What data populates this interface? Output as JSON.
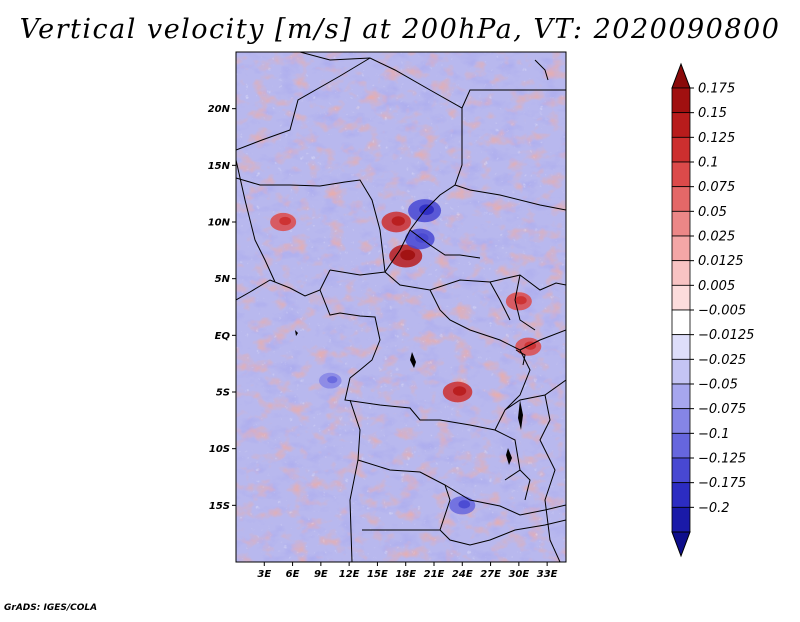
{
  "title": "Vertical velocity [m/s] at 200hPa, VT: 2020090800",
  "footer": "GrADS: IGES/COLA",
  "map": {
    "region": "Central Africa",
    "lon_range_deg": [
      0,
      35
    ],
    "lat_range_deg": [
      -20,
      25
    ],
    "lat_ticks": [
      {
        "value": 20,
        "label": "20N"
      },
      {
        "value": 15,
        "label": "15N"
      },
      {
        "value": 10,
        "label": "10N"
      },
      {
        "value": 5,
        "label": "5N"
      },
      {
        "value": 0,
        "label": "EQ"
      },
      {
        "value": -5,
        "label": "5S"
      },
      {
        "value": -10,
        "label": "10S"
      },
      {
        "value": -15,
        "label": "15S"
      }
    ],
    "lon_ticks": [
      {
        "value": 3,
        "label": "3E"
      },
      {
        "value": 6,
        "label": "6E"
      },
      {
        "value": 9,
        "label": "9E"
      },
      {
        "value": 12,
        "label": "12E"
      },
      {
        "value": 15,
        "label": "15E"
      },
      {
        "value": 18,
        "label": "18E"
      },
      {
        "value": 21,
        "label": "21E"
      },
      {
        "value": 24,
        "label": "24E"
      },
      {
        "value": 27,
        "label": "27E"
      },
      {
        "value": 30,
        "label": "30E"
      },
      {
        "value": 33,
        "label": "33E"
      }
    ],
    "hotspots": [
      {
        "lon": 18,
        "lat": 7,
        "value": 0.15
      },
      {
        "lon": 17,
        "lat": 10,
        "value": 0.125
      },
      {
        "lon": 5,
        "lat": 10,
        "value": 0.1
      },
      {
        "lon": 23.5,
        "lat": -5,
        "value": 0.125
      },
      {
        "lon": 30,
        "lat": 3,
        "value": 0.1
      },
      {
        "lon": 31,
        "lat": -1,
        "value": 0.1
      },
      {
        "lon": 20,
        "lat": 11,
        "value": -0.15
      },
      {
        "lon": 19.5,
        "lat": 8.5,
        "value": -0.125
      },
      {
        "lon": 24,
        "lat": -15,
        "value": -0.1
      },
      {
        "lon": 10,
        "lat": -4,
        "value": -0.075
      }
    ]
  },
  "colorbar": {
    "levels": [
      {
        "label": "0.175",
        "color": "#a01010"
      },
      {
        "label": "0.15",
        "color": "#b81c1c"
      },
      {
        "label": "0.125",
        "color": "#cc2f2f"
      },
      {
        "label": "0.1",
        "color": "#dc4a4a"
      },
      {
        "label": "0.075",
        "color": "#e46868"
      },
      {
        "label": "0.05",
        "color": "#ec8787"
      },
      {
        "label": "0.025",
        "color": "#f4a6a6"
      },
      {
        "label": "0.0125",
        "color": "#f8c3c3"
      },
      {
        "label": "0.005",
        "color": "#fcdcdc"
      },
      {
        "label": "-0.005",
        "color": "#ffffff"
      },
      {
        "label": "-0.0125",
        "color": "#dedefa"
      },
      {
        "label": "-0.025",
        "color": "#c4c4f4"
      },
      {
        "label": "-0.05",
        "color": "#a6a6ee"
      },
      {
        "label": "-0.075",
        "color": "#8585e6"
      },
      {
        "label": "-0.1",
        "color": "#6666de"
      },
      {
        "label": "-0.125",
        "color": "#4848d2"
      },
      {
        "label": "-0.175",
        "color": "#2c2cc2"
      },
      {
        "label": "-0.2",
        "color": "#1a1aa8"
      }
    ],
    "top_arrow_color": "#8a0a0a",
    "bottom_arrow_color": "#0e0e8c"
  }
}
